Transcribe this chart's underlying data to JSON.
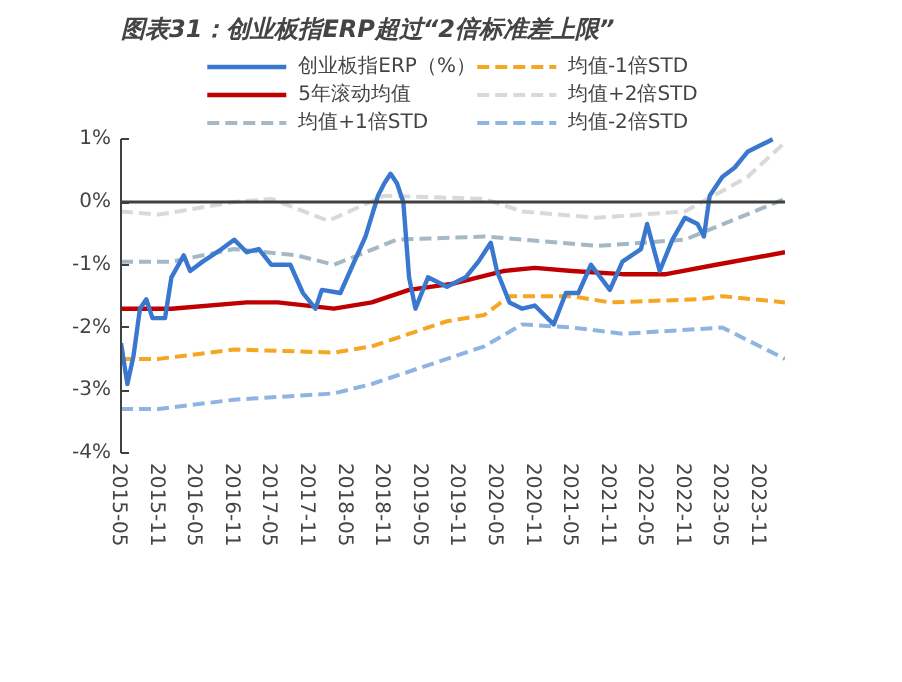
{
  "chart_data": {
    "type": "line",
    "title": "图表31：创业板指ERP超过“2倍标准差上限”",
    "xlim": [
      "2015-05",
      "2024-03"
    ],
    "xticks": [
      "2015-05",
      "2015-11",
      "2016-05",
      "2016-11",
      "2017-05",
      "2017-11",
      "2018-05",
      "2018-11",
      "2019-05",
      "2019-11",
      "2020-05",
      "2020-11",
      "2021-05",
      "2021-11",
      "2022-05",
      "2022-11",
      "2023-05",
      "2023-11"
    ],
    "ylim": [
      -4,
      1
    ],
    "yticks": [
      {
        "value": -4,
        "label": "-4%"
      },
      {
        "value": -3,
        "label": "-3%"
      },
      {
        "value": -2,
        "label": "-2%"
      },
      {
        "value": -1,
        "label": "-1%"
      },
      {
        "value": 0,
        "label": "0%"
      },
      {
        "value": 1,
        "label": "1%"
      }
    ],
    "grid": false,
    "legend": "top",
    "ref_lines": [
      {
        "axis": "y",
        "value": 0,
        "color": "#404040",
        "line_style": "solid"
      }
    ],
    "series": [
      {
        "name": "创业板指ERP（%）",
        "color": "#3a78cf",
        "line_style": "solid",
        "x": [
          "2015-05",
          "2015-06",
          "2015-07",
          "2015-08",
          "2015-09",
          "2015-10",
          "2015-12",
          "2016-01",
          "2016-03",
          "2016-04",
          "2016-06",
          "2016-09",
          "2016-11",
          "2017-01",
          "2017-03",
          "2017-05",
          "2017-08",
          "2017-10",
          "2017-12",
          "2018-01",
          "2018-04",
          "2018-06",
          "2018-08",
          "2018-10",
          "2018-11",
          "2018-12",
          "2019-01",
          "2019-02",
          "2019-03",
          "2019-04",
          "2019-06",
          "2019-09",
          "2019-12",
          "2020-02",
          "2020-04",
          "2020-05",
          "2020-07",
          "2020-09",
          "2020-11",
          "2021-02",
          "2021-04",
          "2021-06",
          "2021-08",
          "2021-11",
          "2022-01",
          "2022-04",
          "2022-05",
          "2022-07",
          "2022-09",
          "2022-11",
          "2023-01",
          "2023-02",
          "2023-03",
          "2023-05",
          "2023-07",
          "2023-09",
          "2023-12",
          "2024-01"
        ],
        "values": [
          -2.25,
          -2.9,
          -2.45,
          -1.7,
          -1.55,
          -1.85,
          -1.85,
          -1.2,
          -0.85,
          -1.1,
          -0.95,
          -0.75,
          -0.6,
          -0.8,
          -0.75,
          -1.0,
          -1.0,
          -1.45,
          -1.7,
          -1.4,
          -1.45,
          -1.0,
          -0.55,
          0.1,
          0.3,
          0.45,
          0.3,
          0.0,
          -1.2,
          -1.7,
          -1.2,
          -1.35,
          -1.2,
          -0.95,
          -0.65,
          -1.1,
          -1.6,
          -1.7,
          -1.65,
          -1.95,
          -1.45,
          -1.45,
          -1.0,
          -1.4,
          -0.95,
          -0.75,
          -0.35,
          -1.1,
          -0.6,
          -0.25,
          -0.35,
          -0.55,
          0.1,
          0.4,
          0.55,
          0.8,
          0.95,
          1.0
        ]
      },
      {
        "name": "5年滚动均值",
        "color": "#c00000",
        "line_style": "solid",
        "x": [
          "2015-05",
          "2016-01",
          "2017-01",
          "2017-06",
          "2018-03",
          "2018-09",
          "2019-03",
          "2019-10",
          "2020-06",
          "2020-11",
          "2021-05",
          "2022-01",
          "2022-08",
          "2023-04",
          "2024-03"
        ],
        "values": [
          -1.7,
          -1.7,
          -1.6,
          -1.6,
          -1.7,
          -1.6,
          -1.4,
          -1.3,
          -1.1,
          -1.05,
          -1.1,
          -1.15,
          -1.15,
          -1.0,
          -0.8
        ]
      },
      {
        "name": "均值+1倍STD",
        "color": "#a5b8c6",
        "line_style": "dashed",
        "x": [
          "2015-05",
          "2016-01",
          "2016-11",
          "2017-09",
          "2018-03",
          "2019-01",
          "2020-03",
          "2020-09",
          "2021-09",
          "2022-11",
          "2024-03"
        ],
        "values": [
          -0.95,
          -0.95,
          -0.75,
          -0.85,
          -1.0,
          -0.6,
          -0.55,
          -0.6,
          -0.7,
          -0.6,
          0.05
        ]
      },
      {
        "name": "均值-1倍STD",
        "color": "#f5a623",
        "line_style": "dashed",
        "x": [
          "2015-05",
          "2015-11",
          "2016-11",
          "2018-03",
          "2018-09",
          "2019-09",
          "2020-03",
          "2020-07",
          "2021-05",
          "2021-11",
          "2023-01",
          "2023-05",
          "2024-03"
        ],
        "values": [
          -2.5,
          -2.5,
          -2.35,
          -2.4,
          -2.3,
          -1.9,
          -1.8,
          -1.5,
          -1.5,
          -1.6,
          -1.55,
          -1.5,
          -1.6
        ]
      },
      {
        "name": "均值+2倍STD",
        "color": "#d9d9d9",
        "line_style": "dashed",
        "x": [
          "2015-05",
          "2015-11",
          "2016-11",
          "2017-05",
          "2018-02",
          "2018-11",
          "2020-03",
          "2020-09",
          "2021-09",
          "2022-11",
          "2023-09",
          "2024-03"
        ],
        "values": [
          -0.15,
          -0.2,
          0.0,
          0.05,
          -0.3,
          0.1,
          0.05,
          -0.15,
          -0.25,
          -0.15,
          0.4,
          0.95
        ]
      },
      {
        "name": "均值-2倍STD",
        "color": "#8fb4e3",
        "line_style": "dashed",
        "x": [
          "2015-05",
          "2015-11",
          "2016-11",
          "2018-03",
          "2018-09",
          "2019-09",
          "2020-03",
          "2020-09",
          "2021-05",
          "2022-01",
          "2023-05",
          "2024-03"
        ],
        "values": [
          -3.3,
          -3.3,
          -3.15,
          -3.05,
          -2.9,
          -2.5,
          -2.3,
          -1.95,
          -2.0,
          -2.1,
          -2.0,
          -2.5
        ]
      }
    ]
  }
}
